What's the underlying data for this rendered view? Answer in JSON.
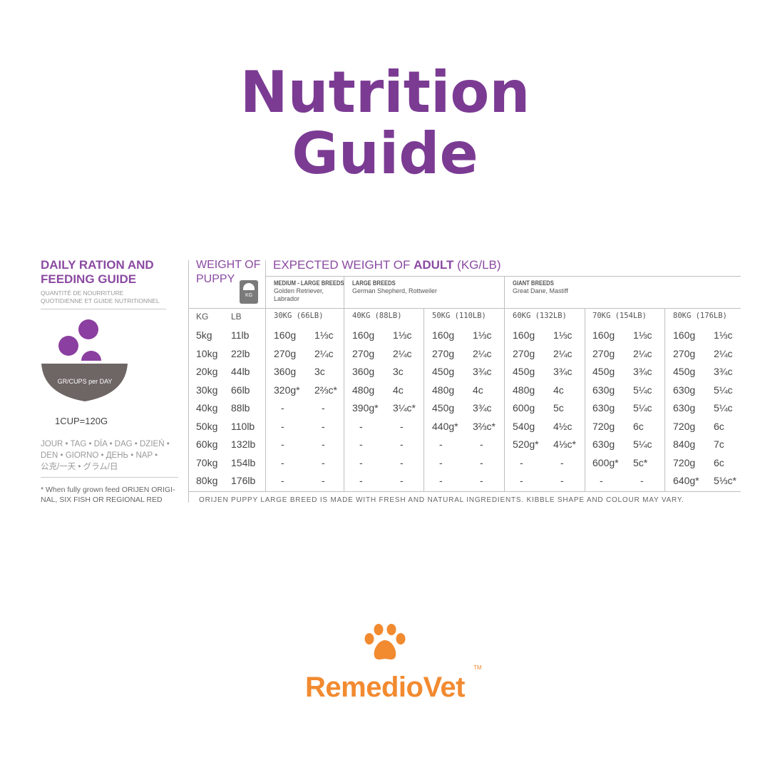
{
  "header": {
    "line1": "Nutrition",
    "line2": "Guide"
  },
  "left_panel": {
    "title_line1": "DAILY RATION AND",
    "title_line2": "FEEDING GUIDE",
    "subtitle_line1": "QUANTITÉ DE NOURRITURE",
    "subtitle_line2": "QUOTIDIENNE ET GUIDE NUTRITIONNEL",
    "bowl_label": "GR/CUPS per DAY",
    "cup_note": "1CUP=120G",
    "days_line1": "JOUR • TAG • DÍA • DAG • DZIEŃ •",
    "days_line2": "DEN • GIORNO • ДЕНЬ • NAP •",
    "days_line3": "公克/一天 • グラム/日",
    "footnote_line1": "* When fully grown feed ORIJEN ORIGI-",
    "footnote_line2": "NAL, SIX FISH OR REGIONAL RED"
  },
  "table": {
    "weight_of_puppy_line1": "WEIGHT OF",
    "weight_of_puppy_line2": "PUPPY",
    "scale_unit": "KG",
    "expected_prefix": "EXPECTED WEIGHT OF ",
    "expected_bold": "ADULT",
    "expected_suffix": " (KG/LB)",
    "breed_groups": [
      {
        "name": "MEDIUM - LARGE BREEDS",
        "examples_line1": "Golden Retriever,",
        "examples_line2": "Labrador"
      },
      {
        "name": "LARGE BREEDS",
        "examples_line1": "German Shepherd, Rottweiler",
        "examples_line2": ""
      },
      {
        "name": "GIANT BREEDS",
        "examples_line1": "Great Dane, Mastiff",
        "examples_line2": ""
      }
    ],
    "puppy_headers": [
      "KG",
      "LB"
    ],
    "adult_headers": [
      "30KG (66LB)",
      "40KG (88LB)",
      "50KG (110LB)",
      "60KG (132LB)",
      "70KG (154LB)",
      "80KG (176LB)"
    ],
    "rows": [
      {
        "kg": "5kg",
        "lb": "11lb",
        "vals": [
          [
            "160g",
            "1⅓c"
          ],
          [
            "160g",
            "1⅓c"
          ],
          [
            "160g",
            "1⅓c"
          ],
          [
            "160g",
            "1⅓c"
          ],
          [
            "160g",
            "1⅓c"
          ],
          [
            "160g",
            "1⅓c"
          ]
        ]
      },
      {
        "kg": "10kg",
        "lb": "22lb",
        "vals": [
          [
            "270g",
            "2¼c"
          ],
          [
            "270g",
            "2¼c"
          ],
          [
            "270g",
            "2¼c"
          ],
          [
            "270g",
            "2¼c"
          ],
          [
            "270g",
            "2¼c"
          ],
          [
            "270g",
            "2¼c"
          ]
        ]
      },
      {
        "kg": "20kg",
        "lb": "44lb",
        "vals": [
          [
            "360g",
            "3c"
          ],
          [
            "360g",
            "3c"
          ],
          [
            "450g",
            "3¾c"
          ],
          [
            "450g",
            "3¾c"
          ],
          [
            "450g",
            "3¾c"
          ],
          [
            "450g",
            "3¾c"
          ]
        ]
      },
      {
        "kg": "30kg",
        "lb": "66lb",
        "vals": [
          [
            "320g*",
            "2⅔c*"
          ],
          [
            "480g",
            "4c"
          ],
          [
            "480g",
            "4c"
          ],
          [
            "480g",
            "4c"
          ],
          [
            "630g",
            "5¼c"
          ],
          [
            "630g",
            "5¼c"
          ]
        ]
      },
      {
        "kg": "40kg",
        "lb": "88lb",
        "vals": [
          [
            "-",
            "-"
          ],
          [
            "390g*",
            "3¼c*"
          ],
          [
            "450g",
            "3¾c"
          ],
          [
            "600g",
            "5c"
          ],
          [
            "630g",
            "5¼c"
          ],
          [
            "630g",
            "5¼c"
          ]
        ]
      },
      {
        "kg": "50kg",
        "lb": "110lb",
        "vals": [
          [
            "-",
            "-"
          ],
          [
            "-",
            "-"
          ],
          [
            "440g*",
            "3⅔c*"
          ],
          [
            "540g",
            "4½c"
          ],
          [
            "720g",
            "6c"
          ],
          [
            "720g",
            "6c"
          ]
        ]
      },
      {
        "kg": "60kg",
        "lb": "132lb",
        "vals": [
          [
            "-",
            "-"
          ],
          [
            "-",
            "-"
          ],
          [
            "-",
            "-"
          ],
          [
            "520g*",
            "4⅓c*"
          ],
          [
            "630g",
            "5¼c"
          ],
          [
            "840g",
            "7c"
          ]
        ]
      },
      {
        "kg": "70kg",
        "lb": "154lb",
        "vals": [
          [
            "-",
            "-"
          ],
          [
            "-",
            "-"
          ],
          [
            "-",
            "-"
          ],
          [
            "-",
            "-"
          ],
          [
            "600g*",
            "5c*"
          ],
          [
            "720g",
            "6c"
          ]
        ]
      },
      {
        "kg": "80kg",
        "lb": "176lb",
        "vals": [
          [
            "-",
            "-"
          ],
          [
            "-",
            "-"
          ],
          [
            "-",
            "-"
          ],
          [
            "-",
            "-"
          ],
          [
            "-",
            "-"
          ],
          [
            "640g*",
            "5⅓c*"
          ]
        ]
      }
    ],
    "bottom_note": "ORIJEN PUPPY LARGE BREED IS MADE WITH FRESH AND NATURAL INGREDIENTS. KIBBLE SHAPE AND COLOUR MAY VARY."
  },
  "brand": {
    "name": "RemedioVet",
    "tm": "TM",
    "paw_icon": "paw-icon"
  },
  "colors": {
    "purple": "#7b3b93",
    "orange": "#f28a30",
    "bowl": "#6e6565"
  }
}
